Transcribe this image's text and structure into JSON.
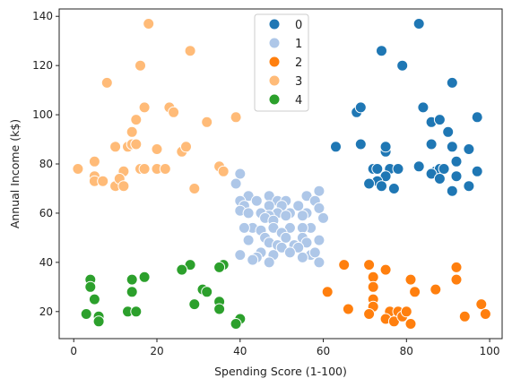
{
  "chart_data": {
    "type": "scatter",
    "xlabel": "Spending Score (1-100)",
    "ylabel": "Annual Income (k$)",
    "xlim": [
      -3.5,
      103
    ],
    "ylim": [
      9,
      143
    ],
    "xticks": [
      0,
      20,
      40,
      60,
      80,
      100
    ],
    "yticks": [
      20,
      40,
      60,
      80,
      100,
      120,
      140
    ],
    "grid": false,
    "legend": "top-center",
    "series": [
      {
        "name": "0",
        "color": "#1f77b4",
        "points": [
          [
            83,
            137
          ],
          [
            74,
            126
          ],
          [
            79,
            120
          ],
          [
            91,
            113
          ],
          [
            68,
            101
          ],
          [
            69,
            103
          ],
          [
            84,
            103
          ],
          [
            97,
            99
          ],
          [
            86,
            97
          ],
          [
            88,
            98
          ],
          [
            90,
            93
          ],
          [
            63,
            87
          ],
          [
            69,
            88
          ],
          [
            75,
            85
          ],
          [
            75,
            87
          ],
          [
            86,
            88
          ],
          [
            91,
            87
          ],
          [
            95,
            86
          ],
          [
            92,
            81
          ],
          [
            72,
            78
          ],
          [
            73,
            78
          ],
          [
            76,
            78
          ],
          [
            78,
            78
          ],
          [
            83,
            79
          ],
          [
            87,
            77
          ],
          [
            88,
            78
          ],
          [
            89,
            78
          ],
          [
            97,
            77
          ],
          [
            75,
            75
          ],
          [
            86,
            76
          ],
          [
            88,
            74
          ],
          [
            92,
            75
          ],
          [
            73,
            73
          ],
          [
            71,
            72
          ],
          [
            74,
            71
          ],
          [
            77,
            70
          ],
          [
            91,
            69
          ],
          [
            95,
            71
          ]
        ]
      },
      {
        "name": "1",
        "color": "#aec7e8",
        "points": [
          [
            40,
            76
          ],
          [
            39,
            72
          ],
          [
            59,
            69
          ],
          [
            42,
            67
          ],
          [
            47,
            67
          ],
          [
            56,
            67
          ],
          [
            40,
            65
          ],
          [
            44,
            65
          ],
          [
            49,
            65
          ],
          [
            51,
            65
          ],
          [
            58,
            65
          ],
          [
            41,
            63
          ],
          [
            47,
            63
          ],
          [
            50,
            63
          ],
          [
            54,
            63
          ],
          [
            59,
            62
          ],
          [
            40,
            61
          ],
          [
            42,
            60
          ],
          [
            45,
            60
          ],
          [
            49,
            60
          ],
          [
            52,
            60
          ],
          [
            56,
            60
          ],
          [
            47,
            59
          ],
          [
            51,
            59
          ],
          [
            55,
            59
          ],
          [
            46,
            58
          ],
          [
            60,
            58
          ],
          [
            48,
            57
          ],
          [
            43,
            54
          ],
          [
            48,
            54
          ],
          [
            52,
            54
          ],
          [
            57,
            54
          ],
          [
            41,
            54
          ],
          [
            55,
            54
          ],
          [
            45,
            53
          ],
          [
            50,
            52
          ],
          [
            42,
            49
          ],
          [
            46,
            50
          ],
          [
            51,
            50
          ],
          [
            55,
            50
          ],
          [
            59,
            49
          ],
          [
            56,
            48
          ],
          [
            47,
            48
          ],
          [
            49,
            47
          ],
          [
            53,
            47
          ],
          [
            50,
            46
          ],
          [
            54,
            46
          ],
          [
            45,
            44
          ],
          [
            48,
            43
          ],
          [
            52,
            44
          ],
          [
            57,
            43
          ],
          [
            44,
            42
          ],
          [
            40,
            43
          ],
          [
            58,
            44
          ],
          [
            59,
            40
          ],
          [
            43,
            41
          ],
          [
            47,
            40
          ],
          [
            55,
            42
          ]
        ]
      },
      {
        "name": "2",
        "color": "#ff7f0e",
        "points": [
          [
            65,
            39
          ],
          [
            71,
            39
          ],
          [
            75,
            37
          ],
          [
            72,
            34
          ],
          [
            92,
            38
          ],
          [
            81,
            33
          ],
          [
            92,
            33
          ],
          [
            61,
            28
          ],
          [
            72,
            30
          ],
          [
            82,
            28
          ],
          [
            87,
            29
          ],
          [
            72,
            25
          ],
          [
            66,
            21
          ],
          [
            72,
            22
          ],
          [
            76,
            20
          ],
          [
            78,
            20
          ],
          [
            98,
            23
          ],
          [
            71,
            19
          ],
          [
            75,
            17
          ],
          [
            77,
            16
          ],
          [
            79,
            18
          ],
          [
            80,
            20
          ],
          [
            81,
            15
          ],
          [
            94,
            18
          ],
          [
            99,
            19
          ]
        ]
      },
      {
        "name": "3",
        "color": "#ffbb78",
        "points": [
          [
            18,
            137
          ],
          [
            28,
            126
          ],
          [
            16,
            120
          ],
          [
            8,
            113
          ],
          [
            17,
            103
          ],
          [
            23,
            103
          ],
          [
            24,
            101
          ],
          [
            39,
            99
          ],
          [
            15,
            98
          ],
          [
            32,
            97
          ],
          [
            14,
            93
          ],
          [
            10,
            87
          ],
          [
            13,
            87
          ],
          [
            14,
            88
          ],
          [
            15,
            88
          ],
          [
            20,
            86
          ],
          [
            26,
            85
          ],
          [
            27,
            87
          ],
          [
            5,
            81
          ],
          [
            1,
            78
          ],
          [
            16,
            78
          ],
          [
            17,
            78
          ],
          [
            20,
            78
          ],
          [
            22,
            78
          ],
          [
            12,
            77
          ],
          [
            35,
            79
          ],
          [
            36,
            77
          ],
          [
            5,
            75
          ],
          [
            5,
            73
          ],
          [
            7,
            73
          ],
          [
            10,
            71
          ],
          [
            11,
            74
          ],
          [
            12,
            71
          ],
          [
            29,
            70
          ]
        ]
      },
      {
        "name": "4",
        "color": "#2ca02c",
        "points": [
          [
            28,
            39
          ],
          [
            36,
            39
          ],
          [
            35,
            38
          ],
          [
            26,
            37
          ],
          [
            17,
            34
          ],
          [
            4,
            33
          ],
          [
            14,
            33
          ],
          [
            4,
            30
          ],
          [
            14,
            28
          ],
          [
            31,
            29
          ],
          [
            32,
            28
          ],
          [
            5,
            25
          ],
          [
            29,
            23
          ],
          [
            35,
            24
          ],
          [
            13,
            20
          ],
          [
            15,
            20
          ],
          [
            35,
            21
          ],
          [
            3,
            19
          ],
          [
            6,
            18
          ],
          [
            6,
            16
          ],
          [
            40,
            17
          ],
          [
            39,
            15
          ]
        ]
      }
    ]
  }
}
